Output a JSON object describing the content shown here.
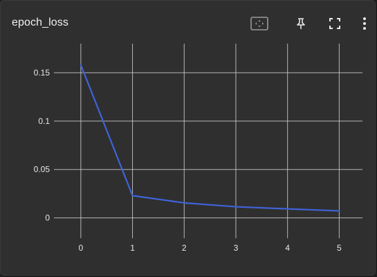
{
  "card": {
    "title": "epoch_loss"
  },
  "toolbar": {
    "buttons": [
      {
        "icon": "fit-to-data-icon"
      },
      {
        "icon": "pin-icon"
      },
      {
        "icon": "fullscreen-icon"
      },
      {
        "icon": "more-vert-icon"
      }
    ]
  },
  "colors": {
    "background": "#2f2f2f",
    "grid": "#cfcfcf",
    "series": "#3f63d8",
    "text": "#e8e8e8"
  },
  "chart_data": {
    "type": "line",
    "title": "",
    "xlabel": "",
    "ylabel": "",
    "x": [
      0,
      1,
      2,
      3,
      4,
      5
    ],
    "series": [
      {
        "values": [
          0.158,
          0.023,
          0.0155,
          0.0115,
          0.0093,
          0.0072
        ]
      }
    ],
    "x_ticks": [
      "0",
      "1",
      "2",
      "3",
      "4",
      "5"
    ],
    "y_ticks": [
      "0",
      "0.05",
      "0.1",
      "0.15"
    ],
    "xlim": [
      -0.52,
      5.45
    ],
    "ylim": [
      -0.021,
      0.18
    ],
    "grid": true,
    "legend": "none"
  }
}
